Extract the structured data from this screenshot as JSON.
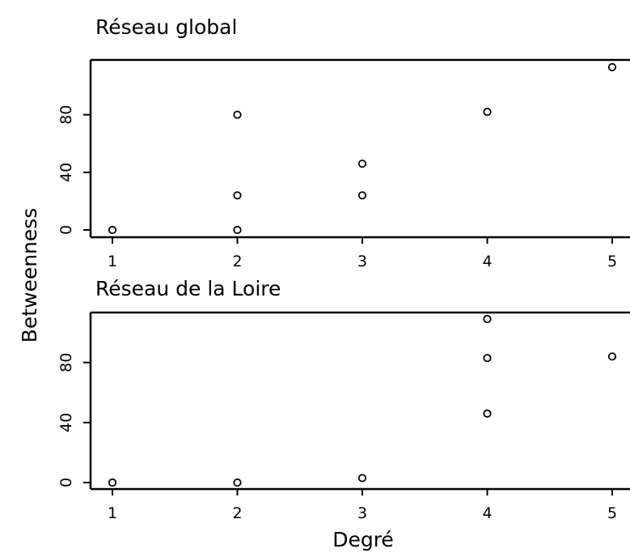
{
  "chart_data": [
    {
      "type": "scatter",
      "title": "Réseau global",
      "xlabel": "",
      "ylabel": "Betweenness",
      "xlim": [
        1,
        5
      ],
      "ylim": [
        0,
        113
      ],
      "xticks": [
        "1",
        "2",
        "3",
        "4",
        "5"
      ],
      "yticks": [
        "0",
        "40",
        "80"
      ],
      "grid": false,
      "marker": "open-circle",
      "points": [
        {
          "x": 1,
          "y": 0
        },
        {
          "x": 2,
          "y": 0
        },
        {
          "x": 2,
          "y": 24
        },
        {
          "x": 2,
          "y": 80
        },
        {
          "x": 3,
          "y": 24
        },
        {
          "x": 3,
          "y": 46
        },
        {
          "x": 4,
          "y": 82
        },
        {
          "x": 5,
          "y": 113
        }
      ]
    },
    {
      "type": "scatter",
      "title": "Réseau de la Loire",
      "xlabel": "Degré",
      "ylabel": "Betweenness",
      "xlim": [
        1,
        5
      ],
      "ylim": [
        0,
        109
      ],
      "xticks": [
        "1",
        "2",
        "3",
        "4",
        "5"
      ],
      "yticks": [
        "0",
        "40",
        "80"
      ],
      "grid": false,
      "marker": "open-circle",
      "points": [
        {
          "x": 1,
          "y": 0
        },
        {
          "x": 2,
          "y": 0
        },
        {
          "x": 3,
          "y": 3
        },
        {
          "x": 4,
          "y": 46
        },
        {
          "x": 4,
          "y": 83
        },
        {
          "x": 4,
          "y": 109
        },
        {
          "x": 5,
          "y": 84
        }
      ]
    }
  ]
}
